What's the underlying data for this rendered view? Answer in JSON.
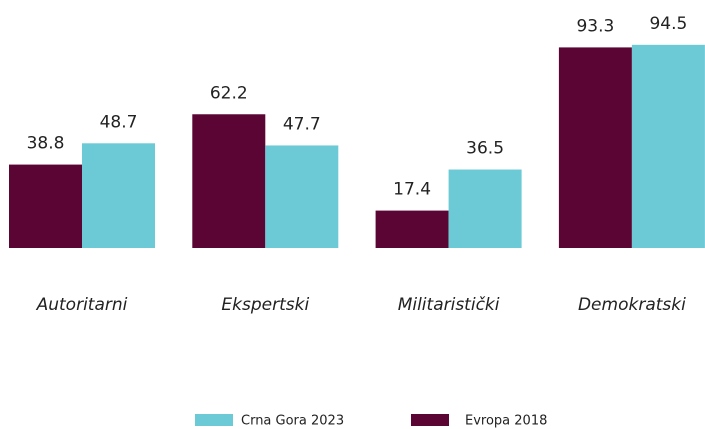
{
  "chart_data": {
    "type": "bar",
    "categories": [
      "Autoritarni",
      "Ekspertski",
      "Militaristički",
      "Demokratski"
    ],
    "series": [
      {
        "name": "Evropa 2018",
        "color": "#5a0533",
        "values": [
          38.8,
          62.2,
          17.4,
          93.3
        ]
      },
      {
        "name": "Crna Gora 2023",
        "color": "#6ccad7",
        "values": [
          48.7,
          47.7,
          36.5,
          94.5
        ]
      }
    ]
  }
}
